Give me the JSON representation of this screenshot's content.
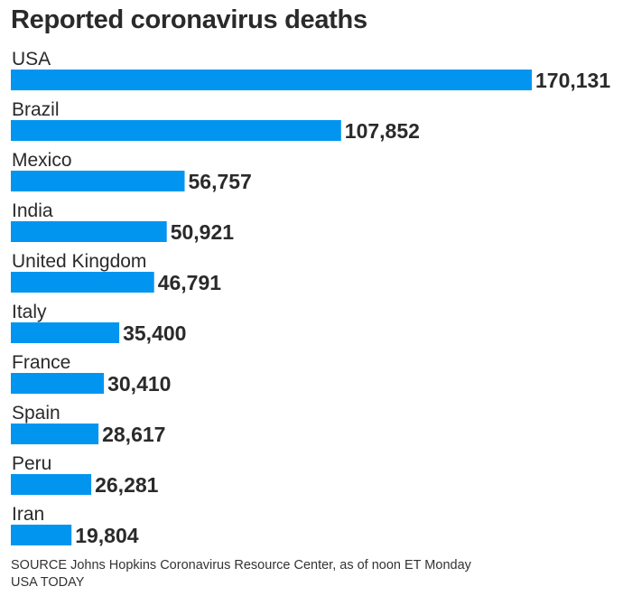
{
  "chart_data": {
    "type": "bar",
    "orientation": "horizontal",
    "title": "Reported coronavirus deaths",
    "categories": [
      "USA",
      "Brazil",
      "Mexico",
      "India",
      "United Kingdom",
      "Italy",
      "France",
      "Spain",
      "Peru",
      "Iran"
    ],
    "values": [
      170131,
      107852,
      56757,
      50921,
      46791,
      35400,
      30410,
      28617,
      26281,
      19804
    ],
    "value_labels": [
      "170,131",
      "107,852",
      "56,757",
      "50,921",
      "46,791",
      "35,400",
      "30,410",
      "28,617",
      "26,281",
      "19,804"
    ],
    "xlabel": "",
    "ylabel": "",
    "xlim": [
      0,
      170131
    ],
    "grid": false,
    "legend": "none",
    "bar_color": "#0195f0"
  },
  "footer": {
    "source": "SOURCE Johns Hopkins Coronavirus Resource Center, as of noon ET Monday",
    "credit": "USA TODAY"
  }
}
